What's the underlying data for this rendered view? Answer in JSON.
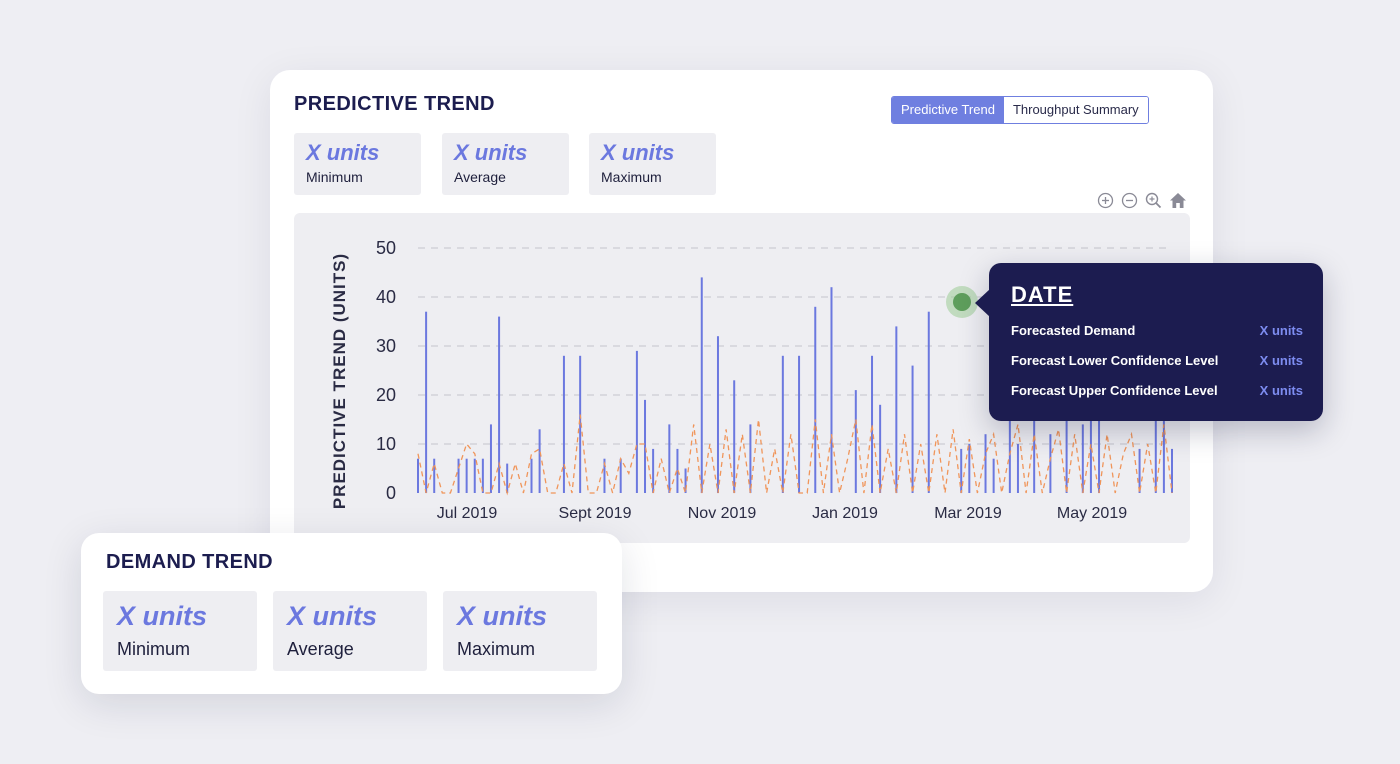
{
  "predictive": {
    "title": "PREDICTIVE TREND",
    "tabs": [
      {
        "label": "Predictive Trend",
        "active": true
      },
      {
        "label": "Throughput Summary",
        "active": false
      }
    ],
    "stats": [
      {
        "value": "X units",
        "label": "Minimum"
      },
      {
        "value": "X units",
        "label": "Average"
      },
      {
        "value": "X units",
        "label": "Maximum"
      }
    ],
    "toolbar": [
      "zoom-in-icon",
      "zoom-out-icon",
      "magnify-icon",
      "home-icon"
    ]
  },
  "tooltip": {
    "title": "DATE",
    "rows": [
      {
        "label": "Forecasted Demand",
        "value": "X units"
      },
      {
        "label": "Forecast Lower Confidence Level",
        "value": "X units"
      },
      {
        "label": "Forecast Upper Confidence Level",
        "value": "X units"
      }
    ]
  },
  "demand": {
    "title": "DEMAND TREND",
    "stats": [
      {
        "value": "X units",
        "label": "Minimum"
      },
      {
        "value": "X units",
        "label": "Average"
      },
      {
        "value": "X units",
        "label": "Maximum"
      }
    ]
  },
  "colors": {
    "accent": "#6f7fe0",
    "bar": "#6b78df",
    "forecast_line": "#f0955a",
    "tooltip_bg": "#1c1c50",
    "hover_dot": "#5e9e5c"
  },
  "chart_data": {
    "type": "bar",
    "ylabel": "PREDICTIVE TREND (UNITS)",
    "ylim": [
      0,
      50
    ],
    "yticks": [
      0,
      10,
      20,
      30,
      40,
      50
    ],
    "xtick_labels": [
      "Jul 2019",
      "Sept 2019",
      "Nov 2019",
      "Jan 2019",
      "Mar 2019",
      "May 2019"
    ],
    "grid": true,
    "series": [
      {
        "values": [
          7,
          37,
          7,
          0,
          0,
          7,
          7,
          7,
          7,
          14,
          36,
          6,
          0,
          0,
          7,
          13,
          0,
          0,
          28,
          0,
          28,
          0,
          0,
          7,
          0,
          7,
          0,
          29,
          19,
          9,
          0,
          14,
          9,
          5,
          0,
          44,
          0,
          32,
          0,
          23,
          0,
          14,
          0,
          0,
          0,
          28,
          0,
          28,
          0,
          38,
          0,
          42,
          0,
          0,
          21,
          0,
          28,
          18,
          0,
          34,
          0,
          26,
          0,
          37,
          0,
          0,
          0,
          9,
          10,
          0,
          12,
          7,
          0,
          20,
          10,
          0,
          18,
          0,
          12,
          0,
          16,
          0,
          14,
          18,
          20,
          0,
          0,
          0,
          0,
          9,
          0,
          15,
          15,
          9
        ]
      },
      {
        "values": [
          8,
          0,
          6,
          0,
          0,
          5,
          10,
          8,
          0,
          0,
          6,
          0,
          6,
          0,
          8,
          9,
          0,
          0,
          6,
          0,
          16,
          0,
          0,
          6,
          0,
          7,
          4,
          10,
          10,
          0,
          7,
          0,
          5,
          0,
          14,
          0,
          10,
          0,
          13,
          0,
          12,
          0,
          15,
          0,
          9,
          0,
          12,
          0,
          0,
          15,
          0,
          12,
          0,
          7,
          15,
          0,
          14,
          0,
          9,
          0,
          12,
          0,
          10,
          0,
          12,
          0,
          13,
          0,
          11,
          0,
          8,
          12,
          0,
          8,
          14,
          0,
          12,
          0,
          7,
          13,
          0,
          12,
          0,
          10,
          0,
          12,
          0,
          8,
          12,
          0,
          10,
          0,
          14,
          0
        ]
      }
    ]
  }
}
